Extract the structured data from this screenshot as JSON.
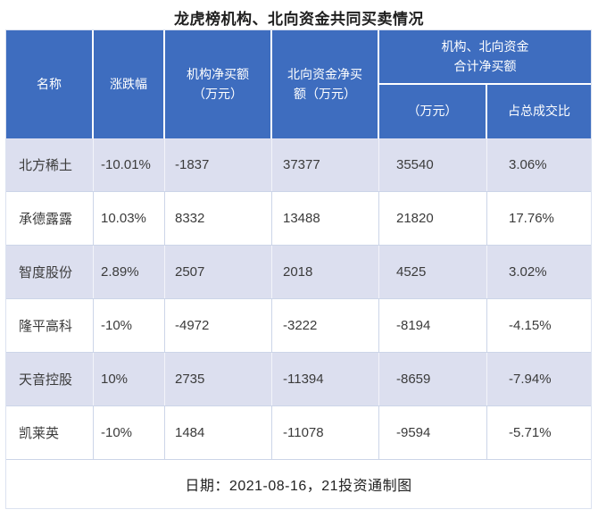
{
  "title": "龙虎榜机构、北向资金共同买卖情况",
  "footer": "日期：2021-08-16，21投资通制图",
  "colors": {
    "header_bg": "#3e6dbf",
    "header_text": "#ffffff",
    "row_shaded_bg": "#dcdfef",
    "row_plain_bg": "#ffffff",
    "grid_line": "#ccd5e8",
    "body_text": "#3b3b3b"
  },
  "header": {
    "name": "名称",
    "change": "涨跌幅",
    "inst_net": "机构净买额\n（万元）",
    "north_net": "北向资金净买\n额（万元）",
    "group": "机构、北向资金\n合计净买额",
    "sub_amount": "（万元）",
    "sub_ratio": "占总成交比"
  },
  "rows": [
    [
      "北方稀土",
      "-10.01%",
      "-1837",
      "37377",
      "35540",
      "3.06%"
    ],
    [
      "承德露露",
      "10.03%",
      "8332",
      "13488",
      "21820",
      "17.76%"
    ],
    [
      "智度股份",
      "2.89%",
      "2507",
      "2018",
      "4525",
      "3.02%"
    ],
    [
      "隆平高科",
      "-10%",
      "-4972",
      "-3222",
      "-8194",
      "-4.15%"
    ],
    [
      "天音控股",
      "10%",
      "2735",
      "-11394",
      "-8659",
      "-7.94%"
    ],
    [
      "凯莱英",
      "-10%",
      "1484",
      "-11078",
      "-9594",
      "-5.71%"
    ]
  ],
  "chart_data": {
    "type": "table",
    "title": "龙虎榜机构、北向资金共同买卖情况",
    "columns": [
      "名称",
      "涨跌幅",
      "机构净买额（万元）",
      "北向资金净买额（万元）",
      "机构、北向资金合计净买额（万元）",
      "机构、北向资金合计净买额占总成交比"
    ],
    "rows": [
      {
        "name": "北方稀土",
        "change_pct": -10.01,
        "inst_net_wan": -1837,
        "north_net_wan": 37377,
        "total_net_wan": 35540,
        "pct_of_turnover": 3.06
      },
      {
        "name": "承德露露",
        "change_pct": 10.03,
        "inst_net_wan": 8332,
        "north_net_wan": 13488,
        "total_net_wan": 21820,
        "pct_of_turnover": 17.76
      },
      {
        "name": "智度股份",
        "change_pct": 2.89,
        "inst_net_wan": 2507,
        "north_net_wan": 2018,
        "total_net_wan": 4525,
        "pct_of_turnover": 3.02
      },
      {
        "name": "隆平高科",
        "change_pct": -10,
        "inst_net_wan": -4972,
        "north_net_wan": -3222,
        "total_net_wan": -8194,
        "pct_of_turnover": -4.15
      },
      {
        "name": "天音控股",
        "change_pct": 10,
        "inst_net_wan": 2735,
        "north_net_wan": -11394,
        "total_net_wan": -8659,
        "pct_of_turnover": -7.94
      },
      {
        "name": "凯莱英",
        "change_pct": -10,
        "inst_net_wan": 1484,
        "north_net_wan": -11078,
        "total_net_wan": -9594,
        "pct_of_turnover": -5.71
      }
    ],
    "date": "2021-08-16",
    "source": "21投资通制图"
  }
}
